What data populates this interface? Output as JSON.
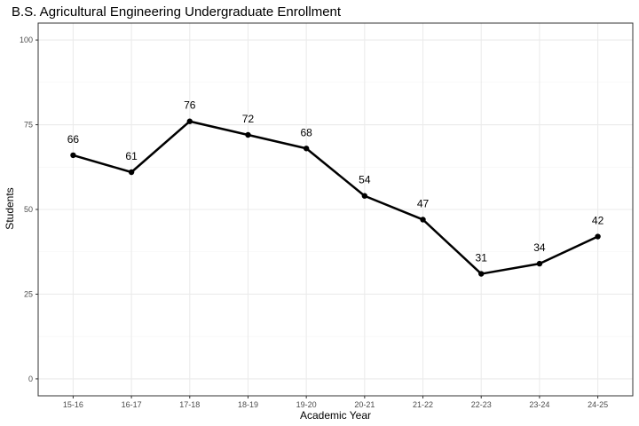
{
  "chart_data": {
    "type": "line",
    "title": "B.S. Agricultural Engineering Undergraduate Enrollment",
    "xlabel": "Academic Year",
    "ylabel": "Students",
    "categories": [
      "15-16",
      "16-17",
      "17-18",
      "18-19",
      "19-20",
      "20-21",
      "21-22",
      "22-23",
      "23-24",
      "24-25"
    ],
    "series": [
      {
        "values": [
          66,
          61,
          76,
          72,
          68,
          54,
          47,
          31,
          34,
          42
        ]
      }
    ],
    "ylim": [
      0,
      100
    ],
    "yticks": [
      0,
      25,
      50,
      75,
      100
    ],
    "grid": true,
    "legend": "none",
    "colors": {
      "line": "#000000",
      "grid_major": "#ebebeb",
      "grid_minor": "#f5f5f5",
      "border": "#333333",
      "tick_text": "#4d4d4d"
    }
  }
}
